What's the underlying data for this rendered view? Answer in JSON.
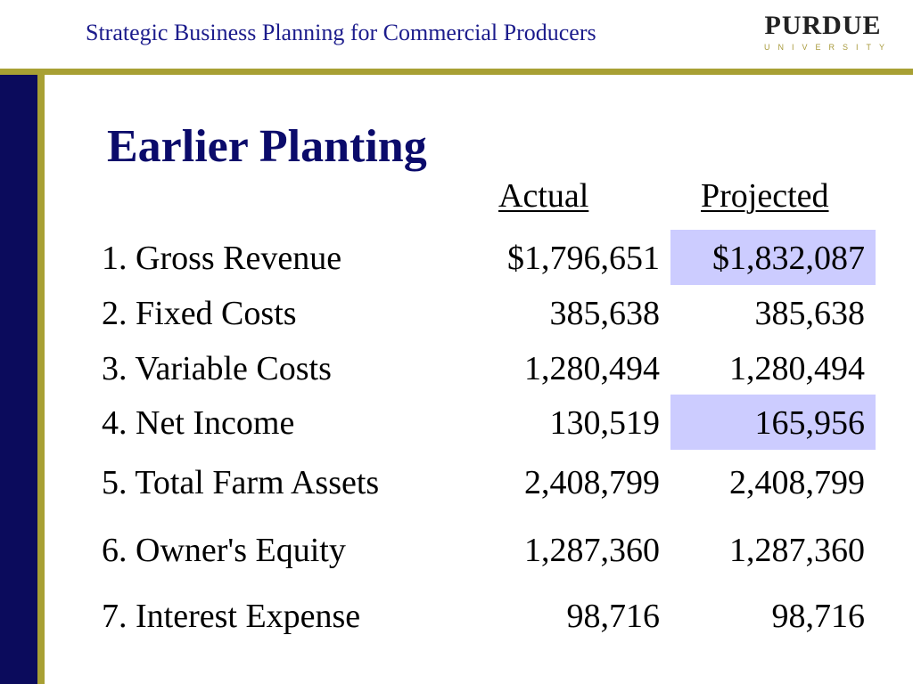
{
  "header": {
    "title": "Strategic Business Planning for Commercial Producers",
    "logo_word": "PURDUE",
    "logo_sub": "UNIVERSITY"
  },
  "slide": {
    "title": "Earlier Planting",
    "column_actual": "Actual",
    "column_projected": "Projected"
  },
  "rows": [
    {
      "label": "1. Gross Revenue",
      "actual": "$1,796,651",
      "projected": "$1,832,087",
      "highlighted": true
    },
    {
      "label": "2. Fixed Costs",
      "actual": "385,638",
      "projected": "385,638",
      "highlighted": false
    },
    {
      "label": "3. Variable Costs",
      "actual": "1,280,494",
      "projected": "1,280,494",
      "highlighted": false
    },
    {
      "label": "4. Net Income",
      "actual": "130,519",
      "projected": "165,956",
      "highlighted": true
    },
    {
      "label": "5. Total Farm Assets",
      "actual": "2,408,799",
      "projected": "2,408,799",
      "highlighted": false
    },
    {
      "label": "6. Owner's Equity",
      "actual": "1,287,360",
      "projected": "1,287,360",
      "highlighted": false
    },
    {
      "label": "7. Interest Expense",
      "actual": "98,716",
      "projected": "98,716",
      "highlighted": false
    }
  ],
  "colors": {
    "header_text": "#1c1c8c",
    "title_text": "#0b0b6b",
    "navy_bar": "#0b0b5c",
    "gold_accent": "#a8a034",
    "highlight": "#ccccff"
  }
}
